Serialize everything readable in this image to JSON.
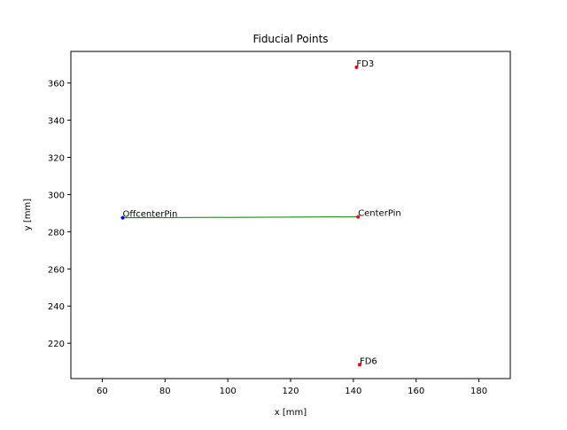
{
  "chart_data": {
    "type": "scatter",
    "title": "Fiducial Points",
    "xlabel": "x [mm]",
    "ylabel": "y [mm]",
    "xlim": [
      50,
      190
    ],
    "ylim": [
      201,
      377
    ],
    "xticks": [
      60,
      80,
      100,
      120,
      140,
      160,
      180
    ],
    "yticks": [
      220,
      240,
      260,
      280,
      300,
      320,
      340,
      360
    ],
    "grid": false,
    "points": [
      {
        "label": "FD3",
        "x": 141,
        "y": 368.5,
        "color": "#ff0000"
      },
      {
        "label": "OffcenterPin",
        "x": 66.5,
        "y": 287.5,
        "color": "#0000ff"
      },
      {
        "label": "CenterPin",
        "x": 141.5,
        "y": 288,
        "color": "#ff0000"
      },
      {
        "label": "FD6",
        "x": 142,
        "y": 208.5,
        "color": "#ff0000"
      }
    ],
    "lines": [
      {
        "from": "OffcenterPin",
        "to": "CenterPin",
        "color": "#008000"
      }
    ]
  }
}
